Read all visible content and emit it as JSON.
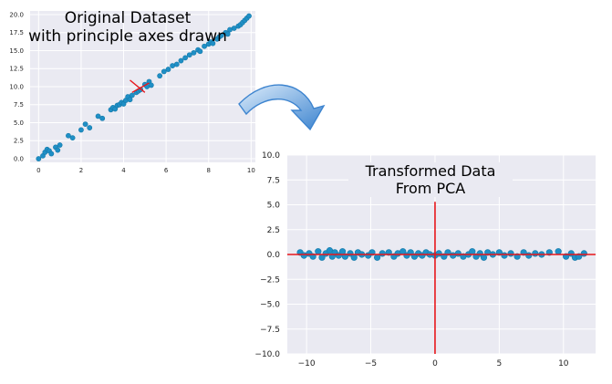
{
  "colors": {
    "point": "#1f8fc6",
    "point_edge": "#167aa9",
    "axis_line": "#e8161b",
    "arrow_light": "#dcecfb",
    "arrow_dark": "#3d84cf",
    "plot_bg": "#eaeaf2",
    "grid": "#ffffff"
  },
  "icons": {
    "connector": "curved-arrow-icon"
  },
  "chart_data": [
    {
      "type": "scatter",
      "title": "",
      "xlabel": "",
      "ylabel": "",
      "xlim": [
        -0.4,
        10.2
      ],
      "ylim": [
        -0.5,
        20.5
      ],
      "xticks": [
        0,
        2,
        4,
        6,
        8,
        10
      ],
      "yticks": [
        0.0,
        2.5,
        5.0,
        7.5,
        10.0,
        12.5,
        15.0,
        17.5,
        20.0
      ],
      "xtick_labels": [
        "0",
        "2",
        "4",
        "6",
        "8",
        "10"
      ],
      "ytick_labels": [
        "0.0",
        "2.5",
        "5.0",
        "7.5",
        "10.0",
        "12.5",
        "15.0",
        "17.5",
        "20.0"
      ],
      "grid": true,
      "legend": "none",
      "annotation": [
        "Original Dataset",
        "with principle axes drawn"
      ],
      "principal_axes": {
        "center": [
          4.8,
          9.7
        ],
        "segments": [
          [
            [
              4.3,
              10.9
            ],
            [
              5.0,
              9.2
            ]
          ],
          [
            [
              4.4,
              9.2
            ],
            [
              5.2,
              10.5
            ]
          ]
        ]
      },
      "series": [
        {
          "x": [
            0.0,
            0.2,
            0.3,
            0.4,
            0.5,
            0.6,
            0.8,
            0.9,
            1.0,
            1.4,
            1.6,
            2.0,
            2.2,
            2.4,
            2.8,
            3.0,
            3.4,
            3.5,
            3.6,
            3.7,
            3.8,
            3.9,
            4.0,
            4.1,
            4.2,
            4.3,
            4.4,
            4.6,
            4.7,
            4.8,
            5.0,
            5.1,
            5.2,
            5.3,
            5.7,
            5.9,
            6.1,
            6.3,
            6.5,
            6.7,
            6.9,
            7.1,
            7.3,
            7.5,
            7.6,
            7.8,
            8.0,
            8.1,
            8.2,
            8.4,
            8.5,
            8.6,
            8.8,
            8.9,
            9.0,
            9.2,
            9.4,
            9.5,
            9.6,
            9.7,
            9.8,
            9.9
          ],
          "y": [
            0.0,
            0.4,
            0.9,
            1.3,
            1.1,
            0.7,
            1.6,
            1.2,
            1.9,
            3.2,
            2.9,
            4.0,
            4.8,
            4.3,
            5.9,
            5.6,
            6.8,
            7.1,
            6.9,
            7.4,
            7.5,
            7.8,
            7.6,
            8.1,
            8.6,
            8.2,
            8.8,
            9.2,
            9.4,
            9.6,
            10.3,
            10.0,
            10.7,
            10.2,
            11.5,
            12.1,
            12.4,
            12.9,
            13.1,
            13.6,
            14.0,
            14.4,
            14.7,
            15.1,
            14.9,
            15.6,
            15.9,
            16.2,
            16.0,
            16.6,
            16.9,
            17.1,
            17.5,
            17.3,
            17.9,
            18.1,
            18.4,
            18.6,
            18.9,
            19.2,
            19.5,
            19.8
          ]
        }
      ]
    },
    {
      "type": "scatter",
      "title": "",
      "xlabel": "",
      "ylabel": "",
      "xlim": [
        -11.5,
        12.5
      ],
      "ylim": [
        -10.0,
        10.0
      ],
      "xticks": [
        -10,
        -5,
        0,
        5,
        10
      ],
      "yticks": [
        -10.0,
        -7.5,
        -5.0,
        -2.5,
        0.0,
        2.5,
        5.0,
        7.5,
        10.0
      ],
      "xtick_labels": [
        "−10",
        "−5",
        "0",
        "5",
        "10"
      ],
      "ytick_labels": [
        "−10.0",
        "−7.5",
        "−5.0",
        "−2.5",
        "0.0",
        "2.5",
        "5.0",
        "7.5",
        "10.0"
      ],
      "grid": true,
      "legend": "none",
      "annotation": [
        "Transformed Data",
        "From PCA"
      ],
      "reference_lines": {
        "horizontal_y": 0.0,
        "vertical_x": 0.0,
        "vertical_range": [
          -10.0,
          5.3
        ]
      },
      "series": [
        {
          "x": [
            -10.5,
            -10.2,
            -9.8,
            -9.5,
            -9.1,
            -8.8,
            -8.5,
            -8.2,
            -8.0,
            -7.8,
            -7.5,
            -7.2,
            -7.0,
            -6.6,
            -6.3,
            -6.0,
            -5.7,
            -5.2,
            -4.9,
            -4.5,
            -4.1,
            -3.6,
            -3.2,
            -2.9,
            -2.5,
            -2.2,
            -1.9,
            -1.6,
            -1.3,
            -1.0,
            -0.7,
            -0.4,
            0.0,
            0.3,
            0.7,
            1.0,
            1.4,
            1.8,
            2.2,
            2.6,
            2.9,
            3.2,
            3.5,
            3.8,
            4.1,
            4.5,
            5.0,
            5.4,
            5.9,
            6.4,
            6.9,
            7.3,
            7.8,
            8.3,
            8.9,
            9.6,
            10.2,
            10.6,
            10.9,
            11.2,
            11.6
          ],
          "y": [
            0.2,
            -0.1,
            0.1,
            -0.2,
            0.3,
            -0.3,
            0.1,
            0.4,
            -0.2,
            0.2,
            -0.1,
            0.3,
            -0.2,
            0.1,
            -0.3,
            0.2,
            0.0,
            -0.1,
            0.2,
            -0.3,
            0.1,
            0.2,
            -0.2,
            0.1,
            0.3,
            -0.1,
            0.2,
            -0.2,
            0.1,
            -0.1,
            0.2,
            0.0,
            -0.1,
            0.1,
            -0.2,
            0.2,
            -0.1,
            0.1,
            -0.2,
            0.0,
            0.3,
            -0.2,
            0.1,
            -0.3,
            0.2,
            0.0,
            0.2,
            -0.1,
            0.1,
            -0.2,
            0.2,
            -0.1,
            0.1,
            0.0,
            0.2,
            0.3,
            -0.2,
            0.1,
            -0.3,
            -0.2,
            0.1
          ]
        }
      ]
    }
  ]
}
